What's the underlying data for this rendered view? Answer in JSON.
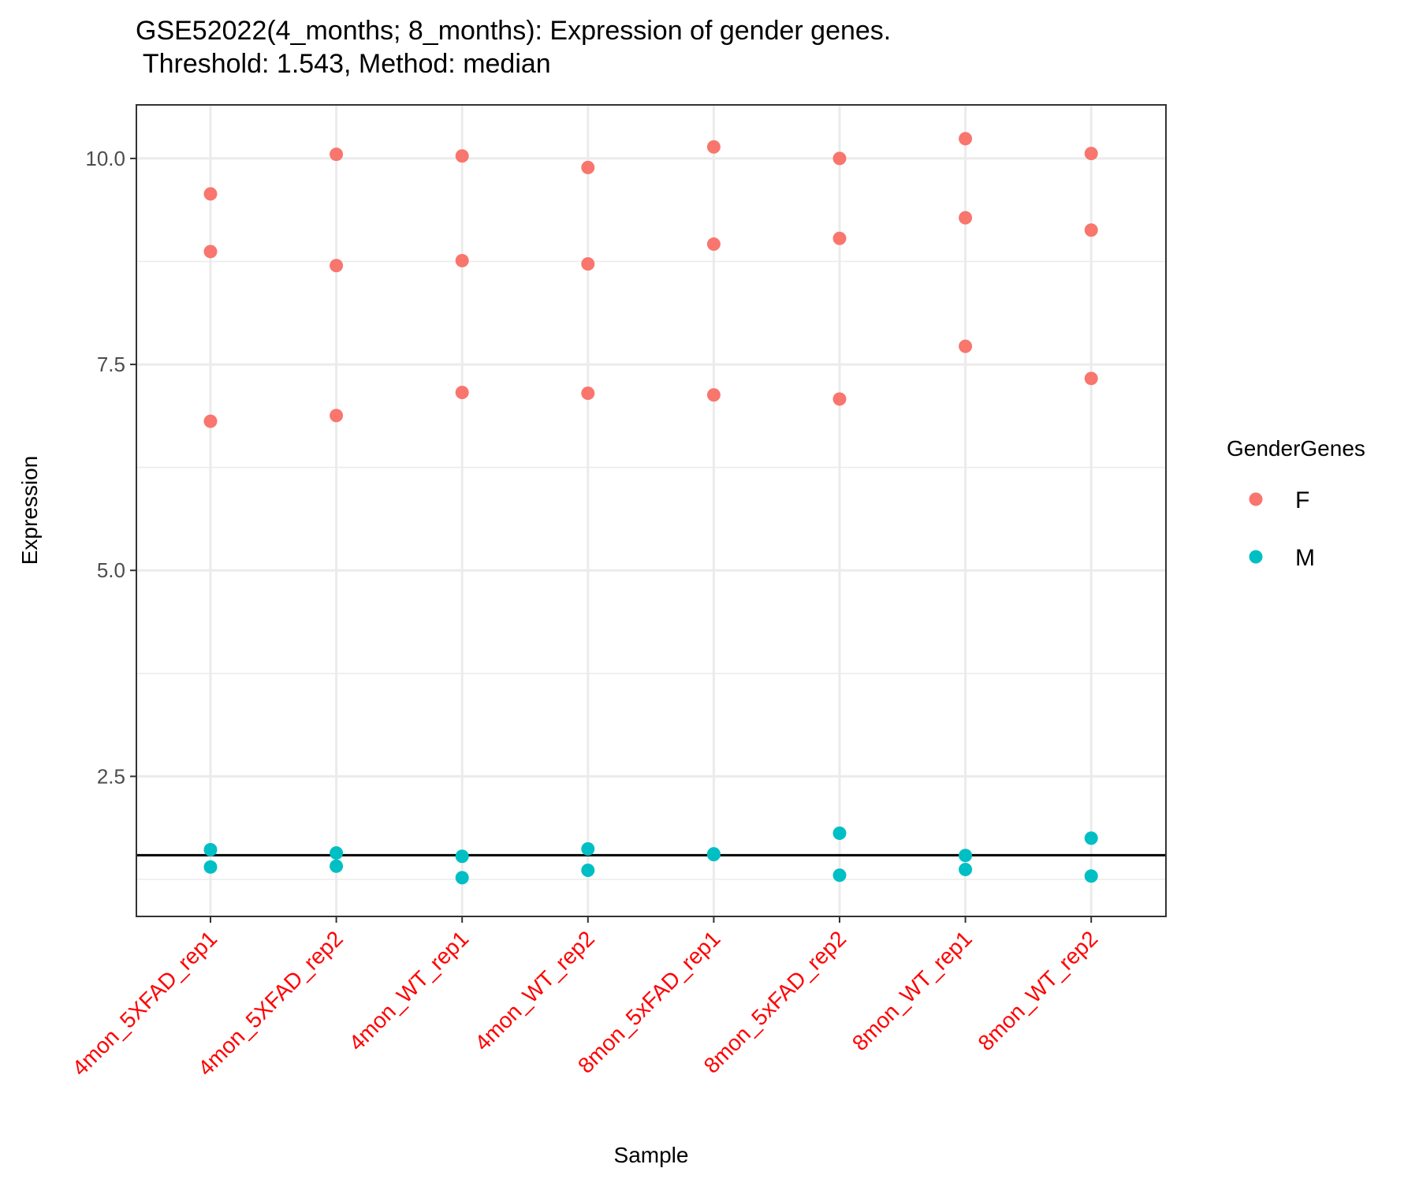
{
  "chart_data": {
    "type": "scatter",
    "title": "GSE52022(4_months; 8_months): Expression of gender genes.",
    "subtitle": " Threshold: 1.543, Method: median",
    "xlabel": "Sample",
    "ylabel": "Expression",
    "categories": [
      "4mon_5XFAD_rep1",
      "4mon_5XFAD_rep2",
      "4mon_WT_rep1",
      "4mon_WT_rep2",
      "8mon_5xFAD_rep1",
      "8mon_5xFAD_rep2",
      "8mon_WT_rep1",
      "8mon_WT_rep2"
    ],
    "category_label_color": "#ff0000",
    "ylim": [
      0.8,
      10.65
    ],
    "yticks": [
      2.5,
      5.0,
      7.5,
      10.0
    ],
    "ytick_labels": [
      "2.5",
      "5.0",
      "7.5",
      "10.0"
    ],
    "grid": true,
    "threshold": 1.543,
    "legend_title": "GenderGenes",
    "legend_position": "right",
    "series": [
      {
        "name": "F",
        "color": "#f8766d",
        "points": [
          [
            "4mon_5XFAD_rep1",
            9.57
          ],
          [
            "4mon_5XFAD_rep1",
            8.87
          ],
          [
            "4mon_5XFAD_rep1",
            6.81
          ],
          [
            "4mon_5XFAD_rep2",
            10.05
          ],
          [
            "4mon_5XFAD_rep2",
            8.7
          ],
          [
            "4mon_5XFAD_rep2",
            6.88
          ],
          [
            "4mon_WT_rep1",
            10.03
          ],
          [
            "4mon_WT_rep1",
            8.76
          ],
          [
            "4mon_WT_rep1",
            7.16
          ],
          [
            "4mon_WT_rep2",
            9.89
          ],
          [
            "4mon_WT_rep2",
            8.72
          ],
          [
            "4mon_WT_rep2",
            7.15
          ],
          [
            "8mon_5xFAD_rep1",
            10.14
          ],
          [
            "8mon_5xFAD_rep1",
            8.96
          ],
          [
            "8mon_5xFAD_rep1",
            7.13
          ],
          [
            "8mon_5xFAD_rep2",
            10.0
          ],
          [
            "8mon_5xFAD_rep2",
            9.03
          ],
          [
            "8mon_5xFAD_rep2",
            7.08
          ],
          [
            "8mon_WT_rep1",
            10.24
          ],
          [
            "8mon_WT_rep1",
            9.28
          ],
          [
            "8mon_WT_rep1",
            7.72
          ],
          [
            "8mon_WT_rep2",
            10.06
          ],
          [
            "8mon_WT_rep2",
            9.13
          ],
          [
            "8mon_WT_rep2",
            7.33
          ]
        ]
      },
      {
        "name": "M",
        "color": "#00bfc4",
        "points": [
          [
            "4mon_5XFAD_rep1",
            1.61
          ],
          [
            "4mon_5XFAD_rep1",
            1.4
          ],
          [
            "4mon_5XFAD_rep2",
            1.57
          ],
          [
            "4mon_5XFAD_rep2",
            1.41
          ],
          [
            "4mon_WT_rep1",
            1.53
          ],
          [
            "4mon_WT_rep1",
            1.27
          ],
          [
            "4mon_WT_rep2",
            1.62
          ],
          [
            "4mon_WT_rep2",
            1.36
          ],
          [
            "8mon_5xFAD_rep1",
            1.56
          ],
          [
            "8mon_5xFAD_rep1",
            1.55
          ],
          [
            "8mon_5xFAD_rep2",
            1.81
          ],
          [
            "8mon_5xFAD_rep2",
            1.3
          ],
          [
            "8mon_WT_rep1",
            1.54
          ],
          [
            "8mon_WT_rep1",
            1.37
          ],
          [
            "8mon_WT_rep2",
            1.75
          ],
          [
            "8mon_WT_rep2",
            1.29
          ]
        ]
      }
    ]
  }
}
